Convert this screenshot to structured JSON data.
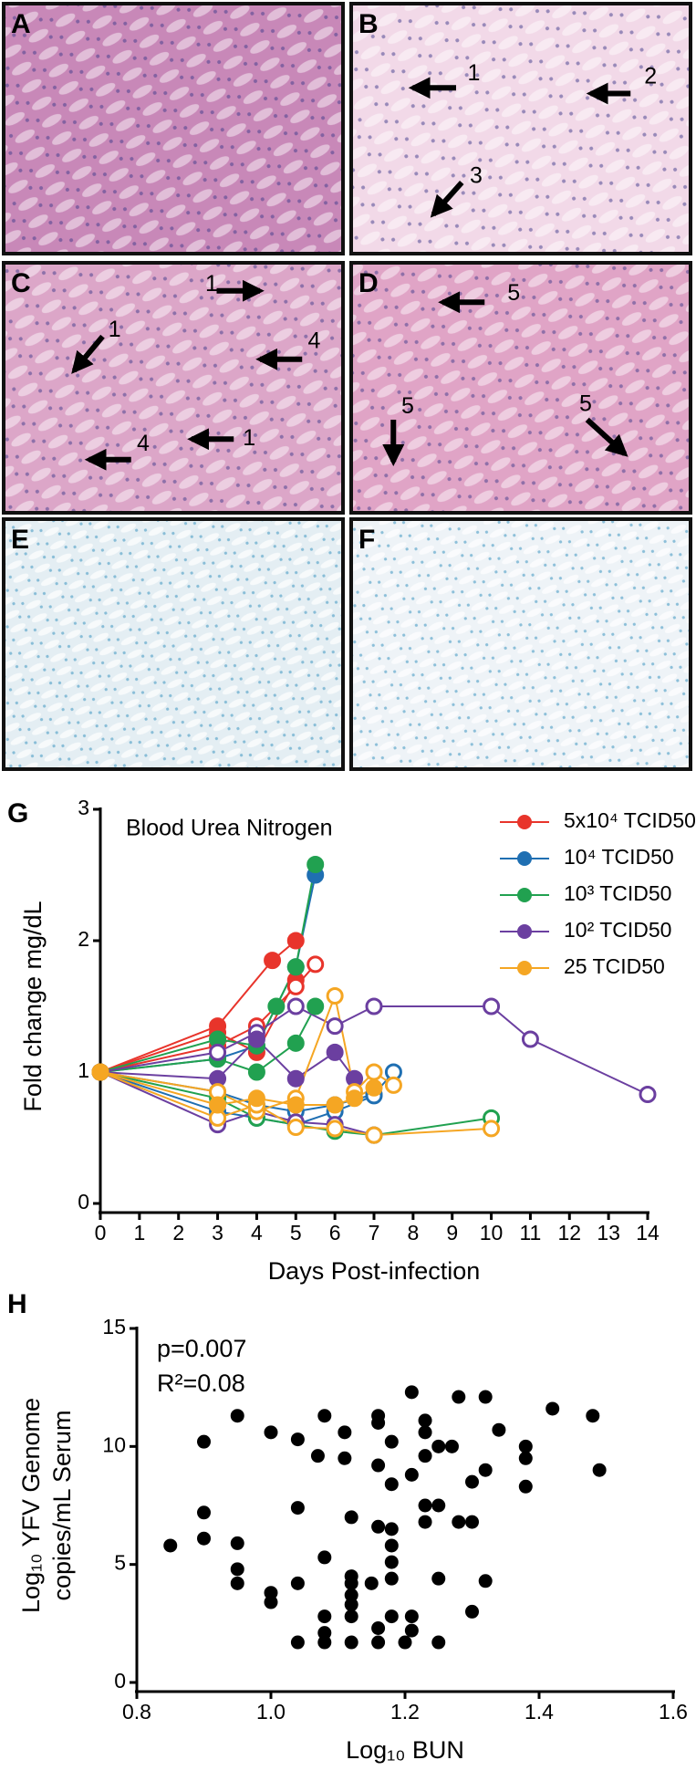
{
  "figure": {
    "panels": [
      {
        "label": "A",
        "annotations": []
      },
      {
        "label": "B",
        "annotations": [
          "1",
          "2",
          "3"
        ]
      },
      {
        "label": "C",
        "annotations": [
          "1",
          "1",
          "4",
          "4",
          "1"
        ]
      },
      {
        "label": "D",
        "annotations": [
          "5",
          "5",
          "5"
        ]
      },
      {
        "label": "E",
        "annotations": []
      },
      {
        "label": "F",
        "annotations": []
      }
    ]
  },
  "chart_data": [
    {
      "type": "line",
      "panel_label": "G",
      "title": "Blood Urea Nitrogen",
      "xlabel": "Days Post-infection",
      "ylabel": "Fold change mg/dL",
      "xlim": [
        0,
        14
      ],
      "xticks": [
        0,
        1,
        2,
        3,
        4,
        5,
        6,
        7,
        8,
        9,
        10,
        11,
        12,
        13,
        14
      ],
      "ylim": [
        0,
        3
      ],
      "yticks": [
        0,
        1,
        2,
        3
      ],
      "legend": "upper right",
      "series": [
        {
          "name": "5x10⁴ TCID50",
          "color": "#e8342b",
          "lines": [
            {
              "marker": "filled",
              "x": [
                0,
                3,
                4.4,
                5
              ],
              "values": [
                1,
                1.35,
                1.85,
                2.0
              ]
            },
            {
              "marker": "filled",
              "x": [
                0,
                3,
                4,
                5
              ],
              "values": [
                1,
                1.3,
                1.15,
                1.7
              ]
            },
            {
              "marker": "open",
              "x": [
                0,
                3,
                4,
                5,
                5.5
              ],
              "values": [
                1,
                1.2,
                1.35,
                1.65,
                1.82
              ]
            }
          ]
        },
        {
          "name": "10⁴ TCID50",
          "color": "#1f6fb2",
          "lines": [
            {
              "marker": "filled",
              "x": [
                0,
                3,
                4,
                5,
                5.5
              ],
              "values": [
                1,
                1.1,
                1.2,
                1.8,
                2.5
              ]
            },
            {
              "marker": "open",
              "x": [
                0,
                3,
                4,
                5,
                6,
                7,
                7.5
              ],
              "values": [
                1,
                0.85,
                0.75,
                0.7,
                0.75,
                0.83,
                1.0
              ]
            },
            {
              "marker": "open",
              "x": [
                0,
                3,
                4,
                5,
                6,
                7
              ],
              "values": [
                1,
                0.7,
                0.65,
                0.6,
                0.7,
                0.82
              ]
            }
          ]
        },
        {
          "name": "10³ TCID50",
          "color": "#21a150",
          "lines": [
            {
              "marker": "filled",
              "x": [
                0,
                3,
                4,
                4.5,
                5,
                5.5
              ],
              "values": [
                1,
                1.25,
                1.2,
                1.5,
                1.8,
                2.58
              ]
            },
            {
              "marker": "filled",
              "x": [
                0,
                3,
                4,
                5,
                5.5
              ],
              "values": [
                1,
                1.1,
                1.0,
                1.22,
                1.5
              ]
            },
            {
              "marker": "open",
              "x": [
                0,
                3,
                4,
                5,
                6,
                7,
                10
              ],
              "values": [
                1,
                0.8,
                0.65,
                0.6,
                0.55,
                0.52,
                0.65
              ]
            }
          ]
        },
        {
          "name": "10² TCID50",
          "color": "#6b3fa0",
          "lines": [
            {
              "marker": "open",
              "x": [
                0,
                3,
                4,
                5,
                6,
                7,
                10,
                11,
                14
              ],
              "values": [
                1,
                1.15,
                1.3,
                1.5,
                1.35,
                1.5,
                1.5,
                1.25,
                0.83
              ]
            },
            {
              "marker": "filled",
              "x": [
                0,
                3,
                4,
                5,
                6,
                6.5
              ],
              "values": [
                1,
                0.95,
                1.25,
                0.95,
                1.15,
                0.95
              ]
            },
            {
              "marker": "open",
              "x": [
                0,
                3,
                4,
                5,
                6,
                7
              ],
              "values": [
                1,
                0.6,
                0.7,
                0.62,
                0.6,
                0.52
              ]
            }
          ]
        },
        {
          "name": "25 TCID50",
          "color": "#f5a623",
          "lines": [
            {
              "marker": "open",
              "x": [
                0,
                3,
                4,
                5,
                6,
                6.5,
                7,
                7.5
              ],
              "values": [
                1,
                0.85,
                0.7,
                0.8,
                1.58,
                0.85,
                1.0,
                0.9
              ]
            },
            {
              "marker": "open",
              "x": [
                0,
                3,
                4,
                5,
                6,
                7,
                10
              ],
              "values": [
                1,
                0.65,
                0.75,
                0.58,
                0.57,
                0.52,
                0.57
              ]
            },
            {
              "marker": "filled",
              "x": [
                0,
                3,
                4,
                5,
                6,
                6.5,
                7
              ],
              "values": [
                1,
                0.75,
                0.8,
                0.75,
                0.75,
                0.8,
                0.88
              ]
            }
          ]
        }
      ]
    },
    {
      "type": "scatter",
      "panel_label": "H",
      "annotations": [
        "p=0.007",
        "R²=0.08"
      ],
      "xlabel": "Log₁₀ BUN",
      "ylabel": [
        "Log₁₀ YFV Genome",
        "copies/mL Serum"
      ],
      "xlim": [
        0.8,
        1.6
      ],
      "xticks": [
        0.8,
        {
          "value": 1,
          "label": "1.0"
        },
        1.2,
        1.4,
        1.6
      ],
      "ylim": [
        0,
        15
      ],
      "yticks": [
        0,
        5,
        10,
        15
      ],
      "color": "#000000",
      "x": [
        0.85,
        0.9,
        0.9,
        0.9,
        0.95,
        0.95,
        0.95,
        0.95,
        1.0,
        1.0,
        1.0,
        1.04,
        1.04,
        1.04,
        1.04,
        1.07,
        1.08,
        1.08,
        1.08,
        1.08,
        1.08,
        1.11,
        1.11,
        1.12,
        1.12,
        1.12,
        1.12,
        1.12,
        1.12,
        1.12,
        1.15,
        1.16,
        1.16,
        1.16,
        1.16,
        1.16,
        1.16,
        1.18,
        1.18,
        1.18,
        1.18,
        1.18,
        1.18,
        1.18,
        1.2,
        1.21,
        1.21,
        1.21,
        1.21,
        1.23,
        1.23,
        1.23,
        1.23,
        1.23,
        1.25,
        1.25,
        1.25,
        1.25,
        1.27,
        1.28,
        1.28,
        1.3,
        1.3,
        1.3,
        1.32,
        1.32,
        1.32,
        1.34,
        1.38,
        1.38,
        1.38,
        1.42,
        1.48,
        1.49
      ],
      "values": [
        5.8,
        10.2,
        7.2,
        6.1,
        11.3,
        5.9,
        4.8,
        4.2,
        10.6,
        3.8,
        3.4,
        10.3,
        7.4,
        4.2,
        1.7,
        9.6,
        11.3,
        5.3,
        2.8,
        2.1,
        1.7,
        10.6,
        9.5,
        7.0,
        4.5,
        4.2,
        3.7,
        3.3,
        2.8,
        1.7,
        4.2,
        11.3,
        11.0,
        9.2,
        6.6,
        2.3,
        1.7,
        10.2,
        8.4,
        6.5,
        5.8,
        5.1,
        4.4,
        2.8,
        1.7,
        12.3,
        8.8,
        2.8,
        2.2,
        11.1,
        10.6,
        9.6,
        7.5,
        6.8,
        10.0,
        7.5,
        4.4,
        1.7,
        10.0,
        12.1,
        6.8,
        8.5,
        6.8,
        3.0,
        12.1,
        9.0,
        4.3,
        10.7,
        10.0,
        9.5,
        8.3,
        11.6,
        11.3,
        9.0
      ]
    }
  ]
}
